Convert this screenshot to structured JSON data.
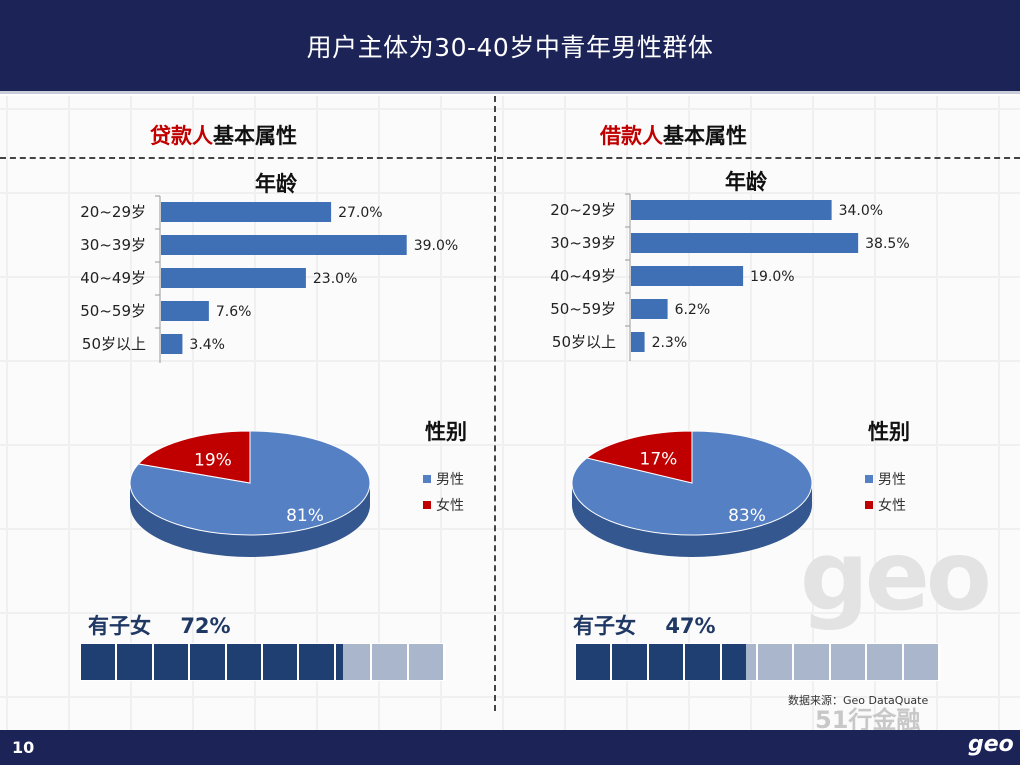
{
  "header": {
    "title": "用户主体为30-40岁中青年男性群体"
  },
  "footer": {
    "page_number": "10",
    "logo": "geo"
  },
  "watermark": {
    "geo": "geo",
    "wechat": "51行金融"
  },
  "source_note": "数据来源：Geo DataQuate",
  "colors": {
    "navy": "#1b2357",
    "bar_blue": "#3f6fb5",
    "pie_blue": "#5580c4",
    "pie_red": "#c00000",
    "children_dark": "#1f3f73",
    "children_light": "#aab6cc"
  },
  "lender": {
    "title_accent": "贷款人",
    "title_rest": "基本属性",
    "age_title": "年龄",
    "gender_title": "性别",
    "children_label": "有子女",
    "children_value": "72%"
  },
  "borrower": {
    "title_accent": "借款人",
    "title_rest": "基本属性",
    "age_title": "年龄",
    "gender_title": "性别",
    "children_label": "有子女",
    "children_value": "47%"
  },
  "chart_data": [
    {
      "type": "bar",
      "orientation": "horizontal",
      "title": "年龄",
      "categories": [
        "20~29岁",
        "30~39岁",
        "40~49岁",
        "50~59岁",
        "50岁以上"
      ],
      "values": [
        27.0,
        39.0,
        23.0,
        7.6,
        3.4
      ],
      "labels": [
        "27.0%",
        "39.0%",
        "23.0%",
        "7.6%",
        "3.4%"
      ]
    },
    {
      "type": "pie",
      "title": "性别",
      "categories": [
        "男性",
        "女性"
      ],
      "values": [
        81,
        19
      ],
      "labels": [
        "81%",
        "19%"
      ],
      "legend": "right"
    },
    {
      "type": "bar",
      "orientation": "horizontal",
      "title": "年龄",
      "categories": [
        "20~29岁",
        "30~39岁",
        "40~49岁",
        "50~59岁",
        "50岁以上"
      ],
      "values": [
        34.0,
        38.5,
        19.0,
        6.2,
        2.3
      ],
      "labels": [
        "34.0%",
        "38.5%",
        "19.0%",
        "6.2%",
        "2.3%"
      ]
    },
    {
      "type": "pie",
      "title": "性别",
      "categories": [
        "男性",
        "女性"
      ],
      "values": [
        83,
        17
      ],
      "labels": [
        "83%",
        "17%"
      ],
      "legend": "right"
    },
    {
      "type": "bar",
      "title": "有子女",
      "values": [
        72
      ],
      "labels": [
        "72%"
      ]
    },
    {
      "type": "bar",
      "title": "有子女",
      "values": [
        47
      ],
      "labels": [
        "47%"
      ]
    }
  ]
}
